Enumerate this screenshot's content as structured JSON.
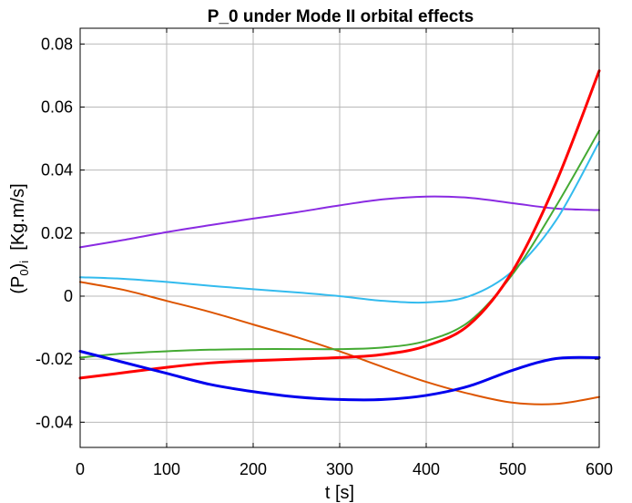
{
  "chart_data": {
    "type": "line",
    "title": "P_0 under Mode II orbital effects",
    "xlabel": "t [s]",
    "ylabel": "(P_0)_i  [Kg.m/s]",
    "ylabel_parts": {
      "open": "(P",
      "sub1": "0",
      "close": ")",
      "sub2": "i",
      "unit": "  [Kg.m/s]"
    },
    "xlim": [
      0,
      600
    ],
    "ylim": [
      -0.048,
      0.085
    ],
    "xticks": [
      0,
      100,
      200,
      300,
      400,
      500,
      600
    ],
    "xtick_labels": [
      "0",
      "100",
      "200",
      "300",
      "400",
      "500",
      "600"
    ],
    "yticks": [
      -0.04,
      -0.02,
      0,
      0.02,
      0.04,
      0.06,
      0.08
    ],
    "ytick_labels": [
      "-0.04",
      "-0.02",
      "0",
      "0.02",
      "0.04",
      "0.06",
      "0.08"
    ],
    "grid": true,
    "x": [
      0,
      50,
      100,
      150,
      200,
      250,
      300,
      350,
      400,
      450,
      500,
      550,
      600
    ],
    "series": [
      {
        "name": "purple",
        "color": "#8a2be2",
        "width": 2,
        "values": [
          0.0155,
          0.0178,
          0.0203,
          0.0225,
          0.0246,
          0.0266,
          0.0288,
          0.0307,
          0.0316,
          0.0312,
          0.0295,
          0.0278,
          0.0273
        ]
      },
      {
        "name": "cyan",
        "color": "#33bbee",
        "width": 2,
        "values": [
          0.006,
          0.0055,
          0.0045,
          0.0033,
          0.0022,
          0.0012,
          0.0,
          -0.0015,
          -0.002,
          0.0,
          0.008,
          0.024,
          0.049
        ]
      },
      {
        "name": "orange",
        "color": "#dd5500",
        "width": 2,
        "values": [
          0.0045,
          0.002,
          -0.0015,
          -0.005,
          -0.009,
          -0.013,
          -0.0175,
          -0.0225,
          -0.0272,
          -0.031,
          -0.0338,
          -0.0342,
          -0.032
        ]
      },
      {
        "name": "green",
        "color": "#44aa33",
        "width": 2,
        "values": [
          -0.0195,
          -0.0182,
          -0.0175,
          -0.017,
          -0.0168,
          -0.0168,
          -0.0168,
          -0.0163,
          -0.0142,
          -0.008,
          0.007,
          0.0285,
          0.0525
        ]
      },
      {
        "name": "red",
        "color": "#ff0000",
        "width": 3,
        "values": [
          -0.026,
          -0.0243,
          -0.0226,
          -0.0212,
          -0.0205,
          -0.02,
          -0.0195,
          -0.0185,
          -0.0158,
          -0.009,
          0.008,
          0.036,
          0.0715
        ]
      },
      {
        "name": "blue",
        "color": "#0000ee",
        "width": 3,
        "values": [
          -0.0175,
          -0.021,
          -0.0245,
          -0.028,
          -0.0303,
          -0.032,
          -0.0328,
          -0.0328,
          -0.0315,
          -0.0285,
          -0.0235,
          -0.0198,
          -0.0195
        ]
      }
    ]
  }
}
